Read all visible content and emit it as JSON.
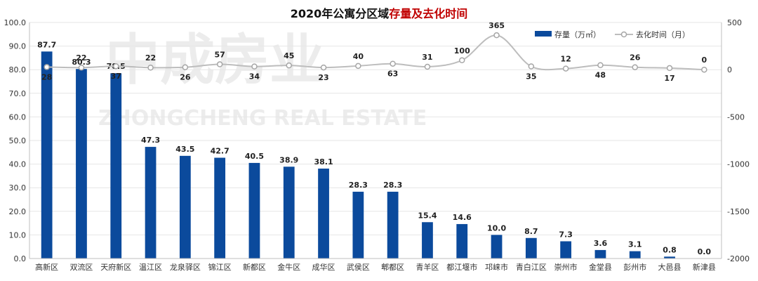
{
  "title": {
    "part1": "2020年公寓分区域",
    "part2": "存量及去化时间"
  },
  "watermark": {
    "cn": "中成房业",
    "en": "ZHONGCHENG REAL ESTATE"
  },
  "chart_data": {
    "type": "bar",
    "title": "2020年公寓分区域存量及去化时间",
    "categories": [
      "高新区",
      "双流区",
      "天府新区",
      "温江区",
      "龙泉驿区",
      "锦江区",
      "新都区",
      "金牛区",
      "成华区",
      "武侯区",
      "郫都区",
      "青羊区",
      "都江堰市",
      "邛崃市",
      "青白江区",
      "崇州市",
      "金堂县",
      "彭州市",
      "大邑县",
      "新津县"
    ],
    "series": [
      {
        "name": "存量（万㎡）",
        "type": "bar",
        "axis": "left",
        "color": "#0b4a9c",
        "values": [
          87.7,
          80.3,
          78.5,
          47.3,
          43.5,
          42.7,
          40.5,
          38.9,
          38.1,
          28.3,
          28.3,
          15.4,
          14.6,
          10.0,
          8.7,
          7.3,
          3.6,
          3.1,
          0.8,
          0.0
        ],
        "labels": [
          "87.7",
          "80.3",
          "78.5",
          "47.3",
          "43.5",
          "42.7",
          "40.5",
          "38.9",
          "38.1",
          "28.3",
          "28.3",
          "15.4",
          "14.6",
          "10.0",
          "8.7",
          "7.3",
          "3.6",
          "3.1",
          "0.8",
          "0.0"
        ]
      },
      {
        "name": "去化时间（月）",
        "type": "line",
        "axis": "right",
        "color": "#bdbdbd",
        "values": [
          28,
          22,
          37,
          22,
          26,
          57,
          34,
          45,
          23,
          40,
          63,
          31,
          100,
          365,
          35,
          12,
          48,
          26,
          17,
          0
        ],
        "labels": [
          "28",
          "22",
          "37",
          "22",
          "26",
          "57",
          "34",
          "45",
          "23",
          "40",
          "63",
          "31",
          "100",
          "365",
          "35",
          "12",
          "48",
          "26",
          "17",
          "0"
        ]
      }
    ],
    "y_left": {
      "min": 0,
      "max": 100,
      "ticks": [
        "0.0",
        "10.0",
        "20.0",
        "30.0",
        "40.0",
        "50.0",
        "60.0",
        "70.0",
        "80.0",
        "90.0",
        "100.0"
      ]
    },
    "y_right": {
      "min": -2000,
      "max": 500,
      "ticks": [
        "-2000",
        "-1500",
        "-1000",
        "-500",
        "0",
        "500"
      ]
    },
    "legend": {
      "position": "top-right"
    },
    "grid": true
  }
}
